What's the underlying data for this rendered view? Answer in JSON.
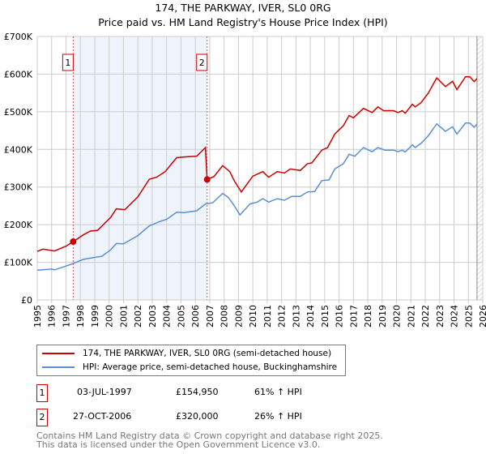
{
  "title": "174, THE PARKWAY, IVER, SL0 0RG",
  "subtitle": "Price paid vs. HM Land Registry's House Price Index (HPI)",
  "colors": {
    "property": "#cc0000",
    "hpi": "#5b8fd4",
    "shade": "#eef3fc"
  },
  "chart_data": {
    "type": "line",
    "xlim": [
      1995,
      2026
    ],
    "ylim": [
      0,
      700000
    ],
    "yticks": [
      {
        "v": 0,
        "label": "£0"
      },
      {
        "v": 100000,
        "label": "£100K"
      },
      {
        "v": 200000,
        "label": "£200K"
      },
      {
        "v": 300000,
        "label": "£300K"
      },
      {
        "v": 400000,
        "label": "£400K"
      },
      {
        "v": 500000,
        "label": "£500K"
      },
      {
        "v": 600000,
        "label": "£600K"
      },
      {
        "v": 700000,
        "label": "£700K"
      }
    ],
    "xticks": [
      "1995",
      "1996",
      "1997",
      "1998",
      "1999",
      "2000",
      "2001",
      "2002",
      "2003",
      "2004",
      "2005",
      "2006",
      "2007",
      "2008",
      "2009",
      "2010",
      "2011",
      "2012",
      "2013",
      "2014",
      "2015",
      "2016",
      "2017",
      "2018",
      "2019",
      "2020",
      "2021",
      "2022",
      "2023",
      "2024",
      "2025",
      "2026"
    ],
    "shaded_range": [
      1997.5,
      2006.82
    ],
    "forecast_hatch_from": 2025.6,
    "series": [
      {
        "name": "174, THE PARKWAY, IVER, SL0 0RG (semi-detached house)",
        "points": [
          [
            1995,
            129000
          ],
          [
            1995.4,
            135000
          ],
          [
            1996.2,
            130000
          ],
          [
            1997,
            143000
          ],
          [
            1997.5,
            154950
          ],
          [
            1998.2,
            173000
          ],
          [
            1998.7,
            183000
          ],
          [
            1999.2,
            185000
          ],
          [
            2000.1,
            219000
          ],
          [
            2000.5,
            242000
          ],
          [
            2001.1,
            240000
          ],
          [
            2002,
            274000
          ],
          [
            2002.8,
            321000
          ],
          [
            2003.3,
            326000
          ],
          [
            2003.9,
            341000
          ],
          [
            2004.7,
            378000
          ],
          [
            2005.2,
            380000
          ],
          [
            2006.1,
            382000
          ],
          [
            2006.7,
            405000
          ],
          [
            2006.82,
            320000
          ],
          [
            2007.3,
            328000
          ],
          [
            2007.9,
            357000
          ],
          [
            2008.4,
            341000
          ],
          [
            2008.7,
            317000
          ],
          [
            2009.2,
            287000
          ],
          [
            2010,
            329000
          ],
          [
            2010.7,
            341000
          ],
          [
            2011.1,
            326000
          ],
          [
            2011.7,
            341000
          ],
          [
            2012.2,
            337000
          ],
          [
            2012.6,
            348000
          ],
          [
            2013.3,
            344000
          ],
          [
            2013.8,
            362000
          ],
          [
            2014.1,
            364000
          ],
          [
            2014.8,
            398000
          ],
          [
            2015.2,
            405000
          ],
          [
            2015.7,
            441000
          ],
          [
            2016.3,
            463000
          ],
          [
            2016.7,
            490000
          ],
          [
            2017,
            484000
          ],
          [
            2017.7,
            509000
          ],
          [
            2018.3,
            498000
          ],
          [
            2018.7,
            513000
          ],
          [
            2019.1,
            503000
          ],
          [
            2019.8,
            503000
          ],
          [
            2020.1,
            498000
          ],
          [
            2020.4,
            503000
          ],
          [
            2020.6,
            496000
          ],
          [
            2021.1,
            520000
          ],
          [
            2021.3,
            513000
          ],
          [
            2021.7,
            524000
          ],
          [
            2022.2,
            549000
          ],
          [
            2022.8,
            590000
          ],
          [
            2023.4,
            567000
          ],
          [
            2023.9,
            581000
          ],
          [
            2024.2,
            559000
          ],
          [
            2024.8,
            593000
          ],
          [
            2025.1,
            593000
          ],
          [
            2025.4,
            580000
          ],
          [
            2025.6,
            588000
          ]
        ]
      },
      {
        "name": "HPI: Average price, semi-detached house, Buckinghamshire",
        "points": [
          [
            1995,
            79000
          ],
          [
            1996,
            82000
          ],
          [
            1996.2,
            80000
          ],
          [
            1997,
            90000
          ],
          [
            1997.5,
            97000
          ],
          [
            1998.2,
            108000
          ],
          [
            1999,
            113000
          ],
          [
            1999.5,
            116000
          ],
          [
            2000.1,
            133000
          ],
          [
            2000.5,
            150000
          ],
          [
            2001,
            149000
          ],
          [
            2002,
            171000
          ],
          [
            2002.8,
            197000
          ],
          [
            2003.5,
            208000
          ],
          [
            2004,
            214000
          ],
          [
            2004.7,
            233000
          ],
          [
            2005.2,
            232000
          ],
          [
            2006.1,
            237000
          ],
          [
            2006.7,
            255000
          ],
          [
            2007.2,
            258000
          ],
          [
            2007.9,
            283000
          ],
          [
            2008.3,
            272000
          ],
          [
            2008.7,
            251000
          ],
          [
            2009.1,
            226000
          ],
          [
            2009.8,
            255000
          ],
          [
            2010.3,
            260000
          ],
          [
            2010.7,
            269000
          ],
          [
            2011.1,
            260000
          ],
          [
            2011.7,
            269000
          ],
          [
            2012.2,
            265000
          ],
          [
            2012.7,
            275000
          ],
          [
            2013.3,
            275000
          ],
          [
            2013.8,
            287000
          ],
          [
            2014.3,
            288000
          ],
          [
            2014.8,
            317000
          ],
          [
            2015.3,
            319000
          ],
          [
            2015.7,
            348000
          ],
          [
            2016.3,
            362000
          ],
          [
            2016.7,
            387000
          ],
          [
            2017.1,
            382000
          ],
          [
            2017.7,
            405000
          ],
          [
            2018.3,
            394000
          ],
          [
            2018.7,
            405000
          ],
          [
            2019.2,
            398000
          ],
          [
            2019.8,
            398000
          ],
          [
            2020.1,
            394000
          ],
          [
            2020.4,
            398000
          ],
          [
            2020.6,
            393000
          ],
          [
            2021.1,
            412000
          ],
          [
            2021.3,
            405000
          ],
          [
            2021.7,
            416000
          ],
          [
            2022.2,
            436000
          ],
          [
            2022.8,
            468000
          ],
          [
            2023.4,
            448000
          ],
          [
            2023.9,
            460000
          ],
          [
            2024.2,
            441000
          ],
          [
            2024.8,
            470000
          ],
          [
            2025.1,
            470000
          ],
          [
            2025.4,
            459000
          ],
          [
            2025.6,
            467000
          ]
        ]
      }
    ],
    "sales": [
      {
        "label": "1",
        "x": 1997.5,
        "y": 154950
      },
      {
        "label": "2",
        "x": 2006.82,
        "y": 320000
      }
    ]
  },
  "legend": {
    "property": "174, THE PARKWAY, IVER, SL0 0RG (semi-detached house)",
    "hpi": "HPI: Average price, semi-detached house, Buckinghamshire"
  },
  "transactions": [
    {
      "num": "1",
      "date": "03-JUL-1997",
      "price": "£154,950",
      "hpi": "61% ↑ HPI"
    },
    {
      "num": "2",
      "date": "27-OCT-2006",
      "price": "£320,000",
      "hpi": "26% ↑ HPI"
    }
  ],
  "footer": [
    "Contains HM Land Registry data © Crown copyright and database right 2025.",
    "This data is licensed under the Open Government Licence v3.0."
  ]
}
